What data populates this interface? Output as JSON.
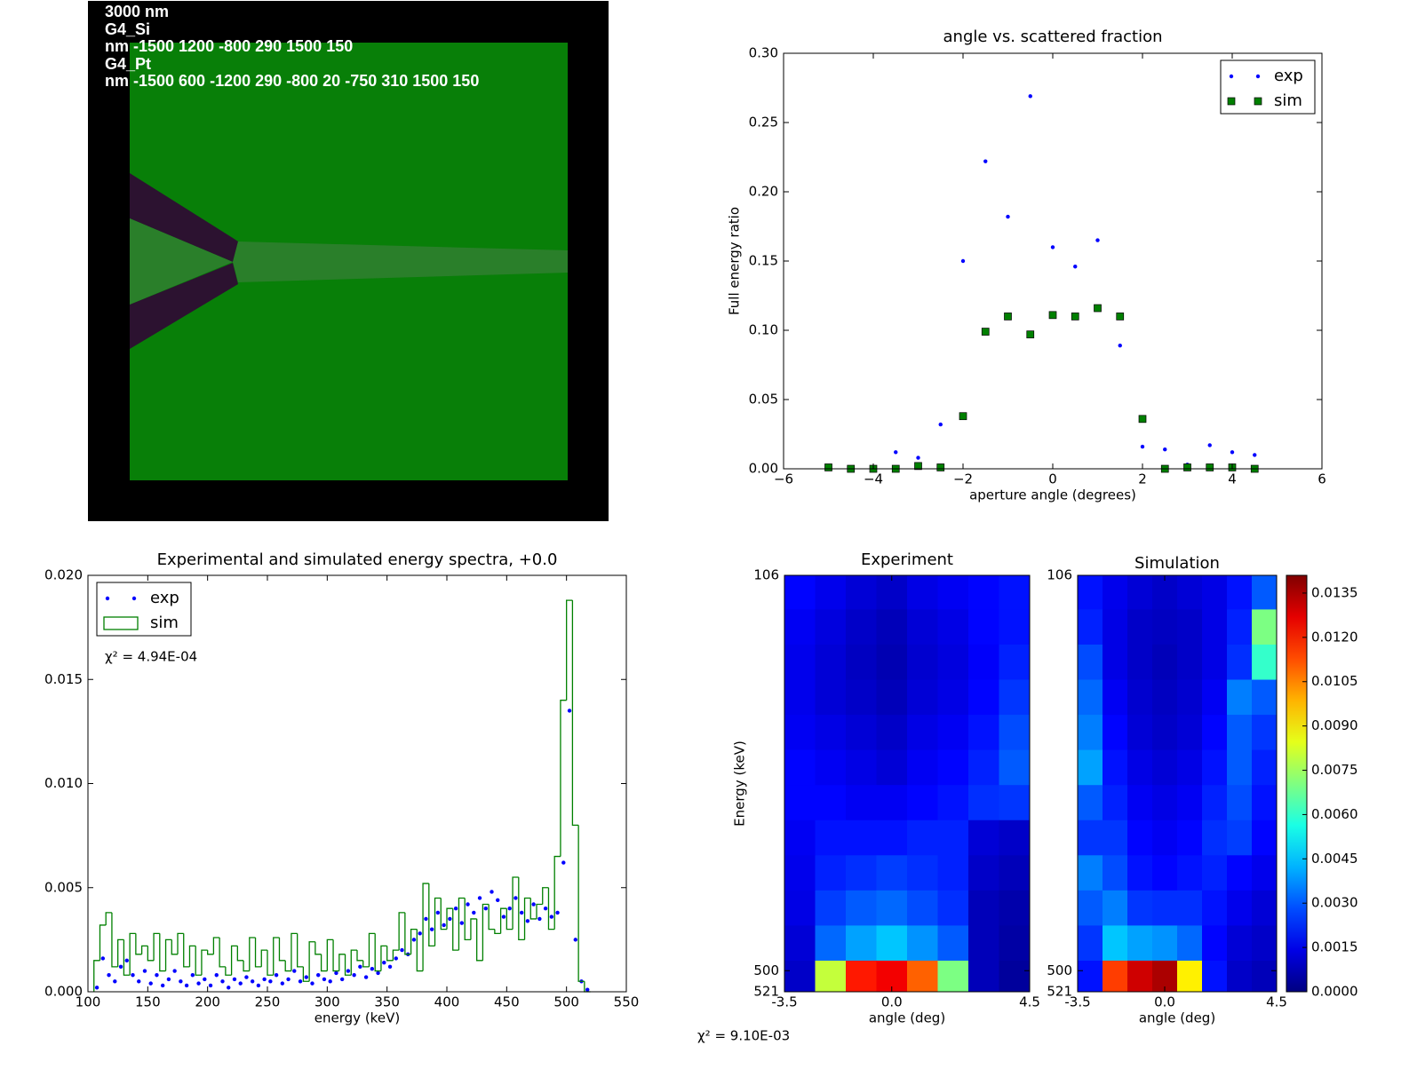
{
  "geometry_panel": {
    "lines": [
      "3000 nm",
      "G4_Si",
      "nm -1500 1200 -800 290 1500 150",
      "G4_Pt",
      "nm -1500 600 -1200 290 -800 20 -750 310 1500 150"
    ]
  },
  "chart_data": [
    {
      "type": "scatter",
      "title": "angle vs. scattered fraction",
      "x_label": "aperture angle (degrees)",
      "y_label": "Full energy ratio",
      "xlim": [
        -6,
        6
      ],
      "xticks": [
        {
          "value": -6,
          "label": "−6"
        },
        {
          "value": -4,
          "label": "−4"
        },
        {
          "value": -2,
          "label": "−2"
        },
        0,
        2,
        4,
        6
      ],
      "ylim": [
        0,
        0.3
      ],
      "yticks": [
        {
          "value": 0,
          "label": "0.00"
        },
        {
          "value": 0.05,
          "label": "0.05"
        },
        {
          "value": 0.1,
          "label": "0.10"
        },
        {
          "value": 0.15,
          "label": "0.15"
        },
        {
          "value": 0.2,
          "label": "0.20"
        },
        {
          "value": 0.25,
          "label": "0.25"
        },
        {
          "value": 0.3,
          "label": "0.30"
        }
      ],
      "legend": "upper right",
      "series": [
        {
          "name": "exp",
          "color": "#0000ff",
          "marker": "dot",
          "x": [
            -3.5,
            -3,
            -2.5,
            -2,
            -1.5,
            -1,
            -0.5,
            0,
            0.5,
            1,
            1.5,
            2,
            2.5,
            3,
            3.5,
            4,
            4.5
          ],
          "values": [
            0.012,
            0.008,
            0.032,
            0.15,
            0.222,
            0.182,
            0.269,
            0.16,
            0.146,
            0.165,
            0.089,
            0.016,
            0.014,
            0.003,
            0.017,
            0.012,
            0.01
          ]
        },
        {
          "name": "sim",
          "color": "#008000",
          "marker": "square",
          "x": [
            -5,
            -4.5,
            -4,
            -3.5,
            -3,
            -2.5,
            -2,
            -1.5,
            -1,
            -0.5,
            0,
            0.5,
            1,
            1.5,
            2,
            2.5,
            3,
            3.5,
            4,
            4.5
          ],
          "values": [
            0.001,
            0,
            0,
            0,
            0.002,
            0.001,
            0.038,
            0.099,
            0.11,
            0.097,
            0.111,
            0.11,
            0.116,
            0.11,
            0.036,
            0,
            0.001,
            0.001,
            0.001,
            0
          ]
        }
      ]
    },
    {
      "type": "spectrum",
      "title": "Experimental and simulated energy spectra, +0.0",
      "x_label": "energy (keV)",
      "annotation": "χ² = 4.94E-04",
      "xlim": [
        100,
        550
      ],
      "xticks": [
        100,
        150,
        200,
        250,
        300,
        350,
        400,
        450,
        500,
        550
      ],
      "ylim": [
        0,
        0.02
      ],
      "yticks": [
        {
          "value": 0,
          "label": "0.000"
        },
        {
          "value": 0.005,
          "label": "0.005"
        },
        {
          "value": 0.01,
          "label": "0.010"
        },
        {
          "value": 0.015,
          "label": "0.015"
        },
        {
          "value": 0.02,
          "label": "0.020"
        }
      ],
      "legend": "upper left",
      "series": [
        {
          "name": "exp",
          "color": "#0000ff",
          "kind": "points",
          "x": [
            107.5,
            112.5,
            117.5,
            122.5,
            127.5,
            132.5,
            137.5,
            142.5,
            147.5,
            152.5,
            157.5,
            162.5,
            167.5,
            172.5,
            177.5,
            182.5,
            187.5,
            192.5,
            197.5,
            202.5,
            207.5,
            212.5,
            217.5,
            222.5,
            227.5,
            232.5,
            237.5,
            242.5,
            247.5,
            252.5,
            257.5,
            262.5,
            267.5,
            272.5,
            277.5,
            282.5,
            287.5,
            292.5,
            297.5,
            302.5,
            307.5,
            312.5,
            317.5,
            322.5,
            327.5,
            332.5,
            337.5,
            342.5,
            347.5,
            352.5,
            357.5,
            362.5,
            367.5,
            372.5,
            377.5,
            382.5,
            387.5,
            392.5,
            397.5,
            402.5,
            407.5,
            412.5,
            417.5,
            422.5,
            427.5,
            432.5,
            437.5,
            442.5,
            447.5,
            452.5,
            457.5,
            462.5,
            467.5,
            472.5,
            477.5,
            482.5,
            487.5,
            492.5,
            497.5,
            502.5,
            507.5,
            512.5,
            517.5
          ],
          "values": [
            0.0002,
            0.0016,
            0.0008,
            0.0005,
            0.0012,
            0.0015,
            0.0008,
            0.0005,
            0.001,
            0.0004,
            0.0008,
            0.0003,
            0.0006,
            0.001,
            0.0005,
            0.0003,
            0.0008,
            0.0004,
            0.0006,
            0.0003,
            0.0008,
            0.0005,
            0.0002,
            0.0006,
            0.0004,
            0.0007,
            0.0005,
            0.0003,
            0.0006,
            0.0005,
            0.0008,
            0.0004,
            0.0006,
            0.001,
            0.0005,
            0.0007,
            0.0004,
            0.0008,
            0.0006,
            0.0005,
            0.0009,
            0.0006,
            0.001,
            0.0008,
            0.0012,
            0.0007,
            0.0011,
            0.0009,
            0.0014,
            0.0012,
            0.0016,
            0.002,
            0.0018,
            0.0025,
            0.0028,
            0.0035,
            0.003,
            0.0038,
            0.0032,
            0.0035,
            0.004,
            0.0033,
            0.0042,
            0.0038,
            0.0045,
            0.004,
            0.0048,
            0.0044,
            0.0036,
            0.004,
            0.0045,
            0.0038,
            0.0034,
            0.0042,
            0.0035,
            0.004,
            0.0036,
            0.0038,
            0.0062,
            0.0135,
            0.0025,
            0.0005,
            0.0001
          ]
        },
        {
          "name": "sim",
          "color": "#008000",
          "kind": "step",
          "bins": [
            105,
            110,
            115,
            120,
            125,
            130,
            135,
            140,
            145,
            150,
            155,
            160,
            165,
            170,
            175,
            180,
            185,
            190,
            195,
            200,
            205,
            210,
            215,
            220,
            225,
            230,
            235,
            240,
            245,
            250,
            255,
            260,
            265,
            270,
            275,
            280,
            285,
            290,
            295,
            300,
            305,
            310,
            315,
            320,
            325,
            330,
            335,
            340,
            345,
            350,
            355,
            360,
            365,
            370,
            375,
            380,
            385,
            390,
            395,
            400,
            405,
            410,
            415,
            420,
            425,
            430,
            435,
            440,
            445,
            450,
            455,
            460,
            465,
            470,
            475,
            480,
            485,
            490,
            495,
            500,
            505,
            510,
            515,
            520
          ],
          "values": [
            0.0015,
            0.0032,
            0.0038,
            0.0012,
            0.0025,
            0.0008,
            0.0028,
            0.0018,
            0.0022,
            0.0015,
            0.0028,
            0.001,
            0.0025,
            0.0018,
            0.0028,
            0.0012,
            0.0022,
            0.0008,
            0.002,
            0.0018,
            0.0026,
            0.0012,
            0.0008,
            0.0022,
            0.0015,
            0.001,
            0.0026,
            0.0012,
            0.002,
            0.0008,
            0.0026,
            0.0015,
            0.001,
            0.0028,
            0.0012,
            0.0005,
            0.0024,
            0.0018,
            0.001,
            0.0025,
            0.001,
            0.0018,
            0.0008,
            0.002,
            0.0015,
            0.0012,
            0.0028,
            0.001,
            0.0022,
            0.0015,
            0.002,
            0.0038,
            0.0018,
            0.003,
            0.001,
            0.0052,
            0.0022,
            0.0045,
            0.003,
            0.004,
            0.002,
            0.0045,
            0.0025,
            0.0035,
            0.0015,
            0.0042,
            0.003,
            0.0028,
            0.004,
            0.003,
            0.0055,
            0.0025,
            0.0045,
            0.0035,
            0.0042,
            0.005,
            0.003,
            0.0065,
            0.014,
            0.0188,
            0.008,
            0.0005,
            0
          ]
        }
      ]
    },
    {
      "type": "heatmap",
      "title": "Experiment",
      "x_label": "angle (deg)",
      "y_label": "Energy (keV)",
      "xlim": [
        -3.5,
        4.5
      ],
      "xticks": [
        -3.5,
        {
          "value": 0,
          "label": "0.0"
        },
        4.5
      ],
      "ylim": [
        521,
        106
      ],
      "yticks": [
        106,
        500,
        521
      ],
      "xbins": [
        -3.5,
        -2.5,
        -1.5,
        -0.5,
        0.5,
        1.5,
        2.5,
        3.5,
        4.5
      ],
      "ybins": [
        106,
        140,
        175,
        210,
        245,
        280,
        315,
        350,
        385,
        420,
        455,
        490,
        521
      ],
      "z": [
        [
          0.0018,
          0.0015,
          0.0012,
          0.001,
          0.0014,
          0.0016,
          0.0018,
          0.002
        ],
        [
          0.0016,
          0.0013,
          0.001,
          0.0008,
          0.0012,
          0.0014,
          0.0018,
          0.002
        ],
        [
          0.0015,
          0.0012,
          0.0009,
          0.0007,
          0.0011,
          0.0013,
          0.0017,
          0.0022
        ],
        [
          0.0015,
          0.0012,
          0.001,
          0.0008,
          0.0012,
          0.0014,
          0.0018,
          0.0025
        ],
        [
          0.0016,
          0.0014,
          0.0012,
          0.001,
          0.0014,
          0.0016,
          0.002,
          0.0028
        ],
        [
          0.0018,
          0.0016,
          0.0014,
          0.0012,
          0.0016,
          0.0018,
          0.0022,
          0.003
        ],
        [
          0.0018,
          0.0018,
          0.0016,
          0.0016,
          0.0018,
          0.002,
          0.0024,
          0.0025
        ],
        [
          0.0016,
          0.002,
          0.002,
          0.002,
          0.0022,
          0.0022,
          0.0012,
          0.001
        ],
        [
          0.0015,
          0.0022,
          0.0024,
          0.0026,
          0.0024,
          0.0022,
          0.001,
          0.0008
        ],
        [
          0.0014,
          0.0026,
          0.003,
          0.0032,
          0.0028,
          0.0024,
          0.0008,
          0.0006
        ],
        [
          0.0012,
          0.0032,
          0.004,
          0.0045,
          0.0038,
          0.003,
          0.0008,
          0.0005
        ],
        [
          0.001,
          0.008,
          0.012,
          0.0125,
          0.011,
          0.007,
          0.0008,
          0.0004
        ]
      ]
    },
    {
      "type": "heatmap",
      "title": "Simulation",
      "x_label": "angle (deg)",
      "xlim": [
        -3.5,
        4.5
      ],
      "xticks": [
        -3.5,
        {
          "value": 0,
          "label": "0.0"
        },
        4.5
      ],
      "ylim": [
        521,
        106
      ],
      "yticks": [
        106,
        500,
        521
      ],
      "xbins": [
        -3.5,
        -2.5,
        -1.5,
        -0.5,
        0.5,
        1.5,
        2.5,
        3.5,
        4.5
      ],
      "ybins": [
        106,
        140,
        175,
        210,
        245,
        280,
        315,
        350,
        385,
        420,
        455,
        490,
        521
      ],
      "z": [
        [
          0.002,
          0.0015,
          0.0012,
          0.001,
          0.0012,
          0.0014,
          0.002,
          0.003
        ],
        [
          0.0022,
          0.0014,
          0.001,
          0.0009,
          0.001,
          0.0014,
          0.0022,
          0.007
        ],
        [
          0.0028,
          0.0014,
          0.001,
          0.0008,
          0.001,
          0.0014,
          0.0024,
          0.006
        ],
        [
          0.0032,
          0.0016,
          0.0011,
          0.0009,
          0.0011,
          0.0016,
          0.0035,
          0.003
        ],
        [
          0.0035,
          0.0018,
          0.0012,
          0.001,
          0.0012,
          0.0018,
          0.003,
          0.0025
        ],
        [
          0.004,
          0.002,
          0.0014,
          0.0012,
          0.0014,
          0.002,
          0.003,
          0.0022
        ],
        [
          0.003,
          0.0022,
          0.0016,
          0.0014,
          0.0016,
          0.0022,
          0.0028,
          0.002
        ],
        [
          0.0025,
          0.0025,
          0.0018,
          0.0016,
          0.0018,
          0.0024,
          0.0026,
          0.0018
        ],
        [
          0.0035,
          0.0028,
          0.002,
          0.0018,
          0.002,
          0.0022,
          0.0018,
          0.0015
        ],
        [
          0.003,
          0.0035,
          0.0025,
          0.0024,
          0.0024,
          0.002,
          0.0015,
          0.0012
        ],
        [
          0.0025,
          0.0045,
          0.004,
          0.0038,
          0.0032,
          0.0018,
          0.0012,
          0.001
        ],
        [
          0.002,
          0.0115,
          0.013,
          0.0135,
          0.009,
          0.002,
          0.001,
          0.0008
        ]
      ]
    }
  ],
  "colorbar": {
    "zlim": [
      0,
      0.0141
    ],
    "ticks": [
      {
        "value": 0,
        "label": "0.0000"
      },
      {
        "value": 0.0015,
        "label": "0.0015"
      },
      {
        "value": 0.003,
        "label": "0.0030"
      },
      {
        "value": 0.0045,
        "label": "0.0045"
      },
      {
        "value": 0.006,
        "label": "0.0060"
      },
      {
        "value": 0.0075,
        "label": "0.0075"
      },
      {
        "value": 0.009,
        "label": "0.0090"
      },
      {
        "value": 0.0105,
        "label": "0.0105"
      },
      {
        "value": 0.012,
        "label": "0.0120"
      },
      {
        "value": 0.0135,
        "label": "0.0135"
      }
    ]
  },
  "footnote": "χ² = 9.10E-03"
}
